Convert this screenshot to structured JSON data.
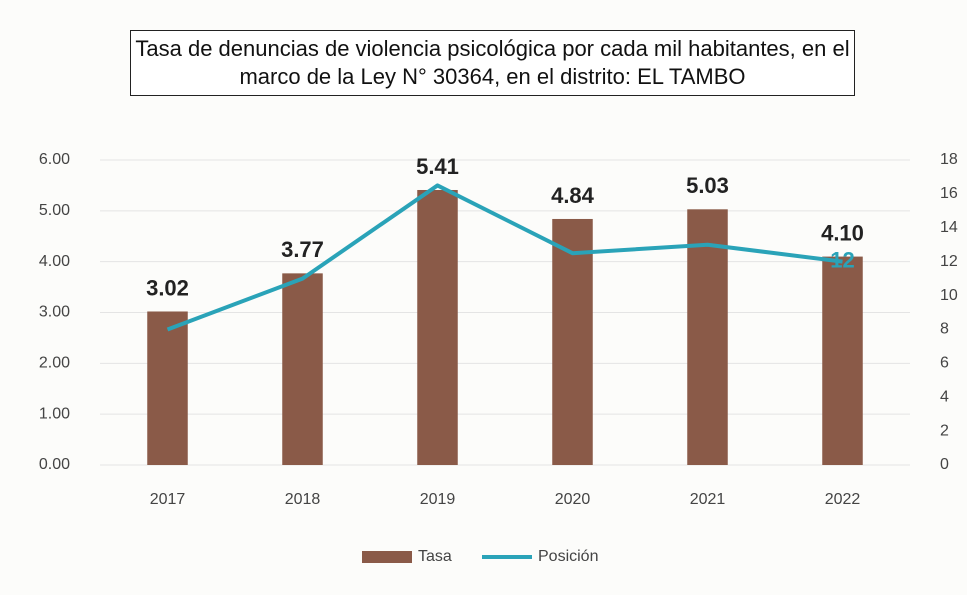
{
  "chart_data": {
    "type": "bar_line",
    "title": "Tasa de denuncias de violencia psicológica por cada mil habitantes, en el marco de la Ley N° 30364, en el distrito: EL TAMBO",
    "categories": [
      "2017",
      "2018",
      "2019",
      "2020",
      "2021",
      "2022"
    ],
    "series": [
      {
        "name": "Tasa",
        "type": "bar",
        "color": "#8a5a48",
        "values": [
          3.02,
          3.77,
          5.41,
          4.84,
          5.03,
          4.1
        ],
        "value_labels": [
          "3.02",
          "3.77",
          "5.41",
          "4.84",
          "5.03",
          "4.10"
        ]
      },
      {
        "name": "Posición",
        "type": "line",
        "axis": "y2",
        "color": "#2aa3b8",
        "values": [
          8,
          11,
          16.5,
          12.5,
          13,
          12
        ],
        "value_labels": [
          null,
          null,
          null,
          null,
          null,
          "12"
        ]
      }
    ],
    "ylim": [
      0,
      6
    ],
    "yticks": [
      {
        "value": 0,
        "label": "0.00"
      },
      {
        "value": 1,
        "label": "1.00"
      },
      {
        "value": 2,
        "label": "2.00"
      },
      {
        "value": 3,
        "label": "3.00"
      },
      {
        "value": 4,
        "label": "4.00"
      },
      {
        "value": 5,
        "label": "5.00"
      },
      {
        "value": 6,
        "label": "6.00"
      }
    ],
    "y2lim": [
      0,
      18
    ],
    "y2ticks": [
      0,
      2,
      4,
      6,
      8,
      10,
      12,
      14,
      16,
      18
    ],
    "grid": true,
    "legend": "bottom"
  }
}
